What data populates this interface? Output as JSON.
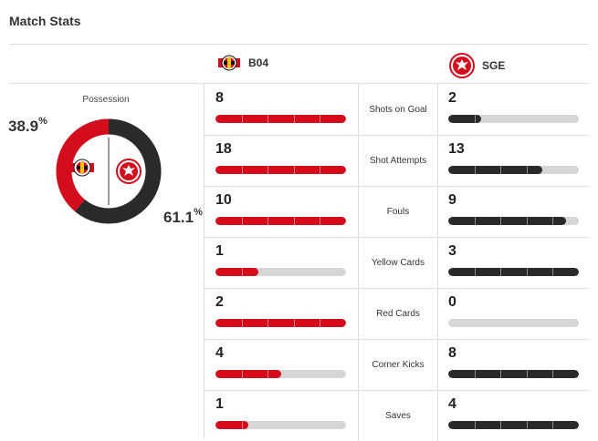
{
  "header": {
    "title": "Match Stats"
  },
  "teams": {
    "home": {
      "abbr": "B04",
      "color": "#d40d1c",
      "logo_icon": "leverkusen-crest-icon"
    },
    "away": {
      "abbr": "SGE",
      "color": "#2a2a2a",
      "logo_icon": "eintracht-eagle-icon"
    }
  },
  "possession": {
    "label": "Possession",
    "home_pct": 38.9,
    "away_pct": 61.1,
    "home_text": "38.9",
    "away_text": "61.1",
    "unit": "%"
  },
  "stats": [
    {
      "label": "Shots on Goal",
      "home": "8",
      "away": "2",
      "home_fill": 1.0,
      "away_fill": 0.25
    },
    {
      "label": "Shot Attempts",
      "home": "18",
      "away": "13",
      "home_fill": 1.0,
      "away_fill": 0.72
    },
    {
      "label": "Fouls",
      "home": "10",
      "away": "9",
      "home_fill": 1.0,
      "away_fill": 0.9
    },
    {
      "label": "Yellow Cards",
      "home": "1",
      "away": "3",
      "home_fill": 0.33,
      "away_fill": 1.0
    },
    {
      "label": "Red Cards",
      "home": "2",
      "away": "0",
      "home_fill": 1.0,
      "away_fill": 0.0
    },
    {
      "label": "Corner Kicks",
      "home": "4",
      "away": "8",
      "home_fill": 0.5,
      "away_fill": 1.0
    },
    {
      "label": "Saves",
      "home": "1",
      "away": "4",
      "home_fill": 0.25,
      "away_fill": 1.0
    }
  ]
}
